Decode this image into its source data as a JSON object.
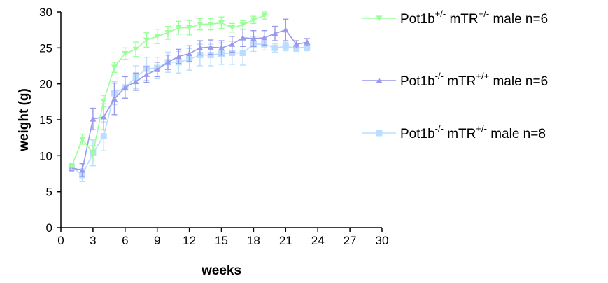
{
  "chart_data": {
    "type": "line",
    "title": "",
    "xlabel": "weeks",
    "ylabel": "weight (g)",
    "xlim": [
      0,
      30
    ],
    "ylim": [
      0,
      30
    ],
    "xticks": [
      "0",
      "3",
      "6",
      "9",
      "12",
      "15",
      "18",
      "21",
      "24",
      "27",
      "30"
    ],
    "yticks": [
      "0",
      "5",
      "10",
      "15",
      "20",
      "25",
      "30"
    ],
    "grid": false,
    "legend_position": "right",
    "series": [
      {
        "name": "Pot1b+/- mTR+/- male  n=6",
        "legend": {
          "base": "Pot1b",
          "sup1": "+/-",
          "mid": " mTR",
          "sup2": "+/-",
          "tail": " male  n=6"
        },
        "color": "#99ff99",
        "marker": "triangle-down",
        "x": [
          1,
          2,
          3,
          4,
          5,
          6,
          7,
          8,
          9,
          10,
          11,
          12,
          13,
          14,
          15,
          16,
          17,
          18,
          19
        ],
        "y": [
          8.5,
          12.3,
          10.4,
          17.6,
          22.3,
          24.2,
          24.8,
          26.1,
          26.6,
          27.1,
          27.8,
          27.8,
          28.3,
          28.3,
          28.5,
          27.8,
          28.2,
          28.9,
          29.5
        ],
        "err": [
          0.4,
          0.7,
          1.0,
          0.8,
          0.7,
          0.8,
          1.0,
          1.0,
          1.0,
          0.9,
          0.9,
          1.0,
          0.8,
          0.8,
          0.8,
          0.6,
          0.6,
          0.5,
          0.5
        ]
      },
      {
        "name": "Pot1b-/- mTR+/+ male  n=6",
        "legend": {
          "base": "Pot1b",
          "sup1": "-/-",
          "mid": " mTR",
          "sup2": "+/+",
          "tail": " male  n=6"
        },
        "color": "#9999ee",
        "marker": "triangle-up",
        "x": [
          1,
          2,
          3,
          4,
          5,
          6,
          7,
          8,
          9,
          10,
          11,
          12,
          13,
          14,
          15,
          16,
          17,
          18,
          19,
          20,
          21,
          22,
          23
        ],
        "y": [
          8.3,
          8.0,
          15.1,
          15.4,
          17.9,
          19.5,
          20.3,
          21.3,
          22.0,
          23.0,
          23.8,
          24.2,
          25.0,
          25.1,
          25.0,
          25.5,
          26.4,
          26.3,
          26.4,
          27.0,
          27.5,
          25.5,
          25.8
        ],
        "err": [
          0.4,
          0.9,
          1.5,
          1.8,
          2.2,
          1.5,
          1.2,
          1.1,
          1.0,
          1.0,
          1.0,
          1.1,
          1.0,
          1.0,
          1.0,
          1.1,
          1.2,
          1.1,
          1.0,
          1.0,
          1.5,
          0.5,
          0.5
        ]
      },
      {
        "name": "Pot1b-/- mTR+/- male n=8",
        "legend": {
          "base": "Pot1b",
          "sup1": "-/-",
          "mid": " mTR",
          "sup2": "+/-",
          "tail": " male n=8"
        },
        "color": "#bbddff",
        "marker": "square",
        "x": [
          1,
          2,
          3,
          4,
          5,
          6,
          7,
          8,
          9,
          10,
          11,
          12,
          13,
          14,
          15,
          16,
          17,
          18,
          19,
          20,
          21,
          22,
          23
        ],
        "y": [
          8.5,
          7.3,
          10.4,
          12.7,
          18.7,
          19.5,
          20.9,
          22.1,
          22.2,
          23.0,
          23.0,
          23.4,
          24.0,
          24.0,
          24.2,
          24.3,
          24.3,
          25.5,
          25.5,
          25.0,
          25.2,
          25.0,
          25.1
        ],
        "err": [
          0.4,
          0.9,
          1.8,
          2.0,
          1.6,
          1.5,
          1.6,
          1.6,
          1.5,
          1.4,
          1.5,
          1.5,
          1.5,
          1.5,
          1.5,
          1.6,
          1.7,
          1.0,
          0.8,
          0.6,
          0.6,
          0.5,
          0.5
        ]
      }
    ]
  }
}
